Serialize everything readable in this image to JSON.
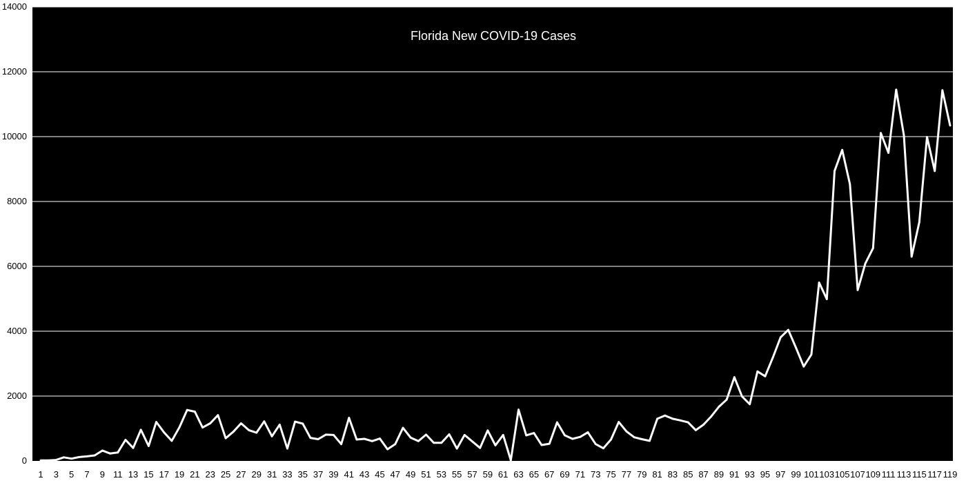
{
  "colors": {
    "plot_background": "#000000",
    "page_background": "#ffffff",
    "line": "#ffffff",
    "gridline": "#ffffff",
    "title_text": "#ffffff",
    "tick_text": "#000000"
  },
  "chart_data": {
    "type": "line",
    "title": "Florida New COVID-19 Cases",
    "xlabel": "",
    "ylabel": "",
    "grid": "horizontal",
    "legend": "none",
    "xlim": [
      1,
      119
    ],
    "ylim": [
      0,
      14000
    ],
    "y_ticks": [
      "0",
      "2000",
      "4000",
      "6000",
      "8000",
      "10000",
      "12000",
      "14000"
    ],
    "x_tick_labels": [
      "1",
      "3",
      "5",
      "7",
      "9",
      "11",
      "13",
      "15",
      "17",
      "19",
      "21",
      "23",
      "25",
      "27",
      "29",
      "31",
      "33",
      "35",
      "37",
      "39",
      "41",
      "43",
      "45",
      "47",
      "49",
      "51",
      "53",
      "55",
      "57",
      "59",
      "61",
      "63",
      "65",
      "67",
      "69",
      "71",
      "73",
      "75",
      "77",
      "79",
      "81",
      "83",
      "85",
      "87",
      "89",
      "91",
      "93",
      "95",
      "97",
      "99",
      "101",
      "103",
      "105",
      "107",
      "109",
      "111",
      "113",
      "115",
      "117",
      "119"
    ],
    "x": [
      1,
      2,
      3,
      4,
      5,
      6,
      7,
      8,
      9,
      10,
      11,
      12,
      13,
      14,
      15,
      16,
      17,
      18,
      19,
      20,
      21,
      22,
      23,
      24,
      25,
      26,
      27,
      28,
      29,
      30,
      31,
      32,
      33,
      34,
      35,
      36,
      37,
      38,
      39,
      40,
      41,
      42,
      43,
      44,
      45,
      46,
      47,
      48,
      49,
      50,
      51,
      52,
      53,
      54,
      55,
      56,
      57,
      58,
      59,
      60,
      61,
      62,
      63,
      64,
      65,
      66,
      67,
      68,
      69,
      70,
      71,
      72,
      73,
      74,
      75,
      76,
      77,
      78,
      79,
      80,
      81,
      82,
      83,
      84,
      85,
      86,
      87,
      88,
      89,
      90,
      91,
      92,
      93,
      94,
      95,
      96,
      97,
      98,
      99,
      100,
      101,
      102,
      103,
      104,
      105,
      106,
      107,
      108,
      109,
      110,
      111,
      112,
      113,
      114,
      115,
      116,
      117,
      118,
      119
    ],
    "values": [
      15,
      15,
      30,
      110,
      70,
      120,
      140,
      170,
      320,
      230,
      260,
      650,
      400,
      960,
      460,
      1200,
      880,
      620,
      1040,
      1570,
      1520,
      1030,
      1160,
      1410,
      700,
      900,
      1160,
      950,
      870,
      1220,
      760,
      1120,
      380,
      1210,
      1150,
      710,
      670,
      810,
      800,
      520,
      1330,
      660,
      680,
      610,
      690,
      360,
      520,
      1020,
      720,
      610,
      810,
      560,
      560,
      820,
      380,
      800,
      600,
      400,
      940,
      480,
      800,
      20,
      1580,
      790,
      860,
      490,
      530,
      1190,
      790,
      680,
      740,
      880,
      520,
      390,
      660,
      1200,
      910,
      730,
      670,
      620,
      1300,
      1400,
      1300,
      1250,
      1190,
      950,
      1120,
      1370,
      1670,
      1890,
      2580,
      1990,
      1750,
      2760,
      2610,
      3190,
      3810,
      4040,
      3490,
      2910,
      3280,
      5500,
      4990,
      8940,
      9590,
      8530,
      5270,
      6090,
      6560,
      10110,
      9500,
      11450,
      10040,
      6300,
      7360,
      9990,
      8940,
      11430,
      10340
    ]
  }
}
